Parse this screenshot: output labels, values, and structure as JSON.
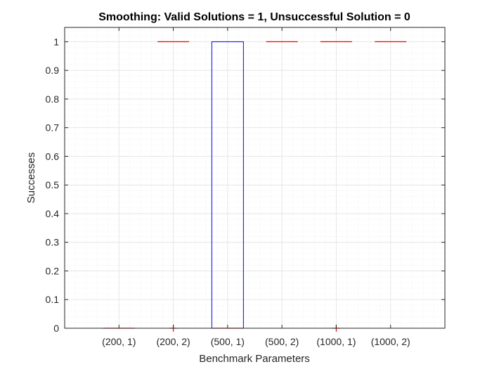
{
  "chart_data": {
    "type": "box",
    "title": "Smoothing: Valid Solutions = 1, Unsuccessful Solution = 0",
    "xlabel": "Benchmark Parameters",
    "ylabel": "Successes",
    "categories": [
      "(200, 1)",
      "(200, 2)",
      "(500, 1)",
      "(500, 2)",
      "(1000, 1)",
      "(1000, 2)"
    ],
    "ylim": [
      0,
      1.05
    ],
    "yticks": [
      "0",
      "0.1",
      "0.2",
      "0.3",
      "0.4",
      "0.5",
      "0.6",
      "0.7",
      "0.8",
      "0.9",
      "1"
    ],
    "boxes": [
      {
        "category": "(200, 1)",
        "median": 0,
        "q1": 0,
        "q3": 0,
        "outliers": []
      },
      {
        "category": "(200, 2)",
        "median": 1,
        "q1": 1,
        "q3": 1,
        "outliers": [
          0
        ]
      },
      {
        "category": "(500, 1)",
        "median": 0,
        "q1": 0,
        "q3": 1,
        "outliers": []
      },
      {
        "category": "(500, 2)",
        "median": 1,
        "q1": 1,
        "q3": 1,
        "outliers": []
      },
      {
        "category": "(1000, 1)",
        "median": 1,
        "q1": 1,
        "q3": 1,
        "outliers": [
          0
        ]
      },
      {
        "category": "(1000, 2)",
        "median": 1,
        "q1": 1,
        "q3": 1,
        "outliers": []
      }
    ],
    "grid": true,
    "minor_grid": true,
    "colors": {
      "box": "#0000ff",
      "median": "#ff0000",
      "outlier": "#ff0000",
      "axis": "#262626",
      "grid": "#e6e6e6"
    }
  }
}
